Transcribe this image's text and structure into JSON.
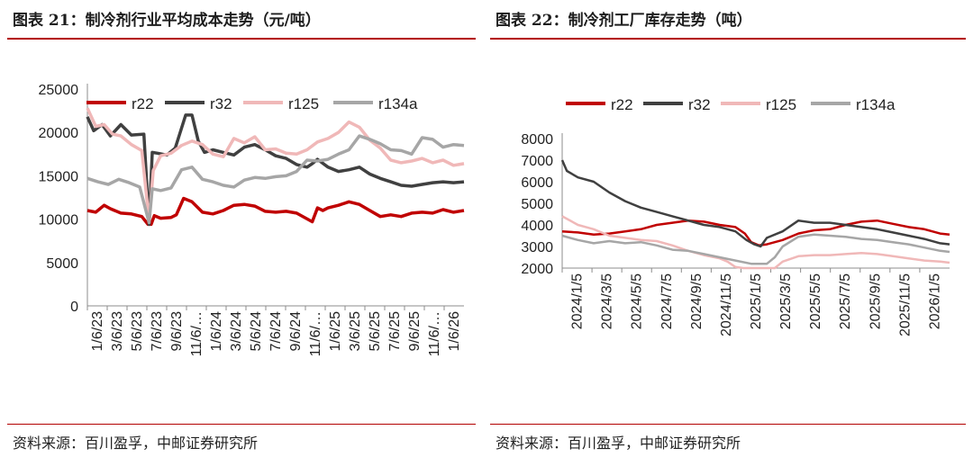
{
  "left": {
    "title": "图表 21：制冷剂行业平均成本走势（元/吨）",
    "source": "资料来源：百川盈孚，中邮证券研究所"
  },
  "right": {
    "title": "图表 22：制冷剂工厂库存走势（吨）",
    "source": "资料来源：百川盈孚，中邮证券研究所"
  },
  "chart_data": [
    {
      "type": "line",
      "title": "",
      "xlabel": "",
      "ylabel": "",
      "ylim": [
        0,
        25000
      ],
      "yticks": [
        0,
        5000,
        10000,
        15000,
        20000,
        25000
      ],
      "legend_position": "top",
      "grid": false,
      "x_tick_labels": [
        "1/6/23",
        "3/6/23",
        "5/6/23",
        "7/6/23",
        "9/6/23",
        "11/6/…",
        "1/6/24",
        "3/6/24",
        "5/6/24",
        "7/6/24",
        "9/6/24",
        "11/6/…",
        "1/6/25",
        "3/6/25",
        "5/6/25",
        "7/6/25",
        "9/6/25",
        "11/6/…",
        "1/6/26"
      ],
      "x_range_index": [
        0,
        36
      ],
      "series": [
        {
          "name": "r22",
          "color": "#c00000",
          "x": [
            0,
            0.8,
            1.6,
            2.2,
            3.2,
            4.2,
            5.2,
            5.8,
            6.1,
            6.4,
            7,
            8,
            8.5,
            9.2,
            10,
            11,
            12,
            13,
            14,
            15,
            16,
            17,
            18,
            19,
            20,
            21.5,
            22,
            22.5,
            23,
            24,
            25,
            26,
            27,
            28,
            29,
            30,
            31,
            32,
            33,
            34,
            35,
            36
          ],
          "y": [
            11000,
            10800,
            11600,
            11200,
            10700,
            10600,
            10300,
            9400,
            9400,
            10400,
            10100,
            10200,
            10500,
            12400,
            12000,
            10800,
            10600,
            11000,
            11600,
            11700,
            11500,
            10900,
            10800,
            10900,
            10700,
            9700,
            11300,
            11000,
            11300,
            11600,
            12000,
            11700,
            11000,
            10300,
            10500,
            10300,
            10700,
            10800,
            10700,
            11100,
            10800,
            11000
          ]
        },
        {
          "name": "r32",
          "color": "#404040",
          "x": [
            0,
            0.6,
            1.4,
            2.2,
            3.2,
            4.2,
            5.4,
            5.9,
            6.2,
            6.7,
            7.6,
            8.4,
            9.4,
            10,
            10.6,
            11.2,
            12,
            13,
            14,
            15,
            16,
            17,
            18,
            19,
            20,
            21,
            21.5,
            22,
            23,
            24,
            25,
            26,
            27,
            28,
            29,
            30,
            31,
            32,
            33,
            34,
            35,
            36
          ],
          "y": [
            21800,
            20200,
            20900,
            19600,
            20900,
            19700,
            19800,
            9400,
            17700,
            17600,
            17400,
            18200,
            22000,
            22000,
            19000,
            17700,
            18000,
            17700,
            17400,
            18300,
            18600,
            18000,
            17300,
            17000,
            16300,
            16000,
            16400,
            16900,
            16000,
            15500,
            15700,
            16000,
            15200,
            14700,
            14300,
            13900,
            13800,
            14000,
            14200,
            14300,
            14200,
            14300
          ]
        },
        {
          "name": "r125",
          "color": "#f0b8b8",
          "x": [
            0,
            0.8,
            1.6,
            2.4,
            3.2,
            4.2,
            5.2,
            5.9,
            6.3,
            7,
            8,
            9,
            10,
            11,
            12,
            13,
            14,
            15,
            16,
            17,
            18,
            19,
            20,
            21,
            22,
            23,
            24,
            25,
            26,
            27,
            28,
            29,
            30,
            31,
            32,
            33,
            34,
            35,
            36
          ],
          "y": [
            22800,
            20700,
            20900,
            19800,
            19600,
            18600,
            17900,
            9800,
            15600,
            17300,
            17600,
            18500,
            19000,
            18600,
            17500,
            17200,
            19300,
            18800,
            19500,
            18000,
            18100,
            17600,
            17500,
            18000,
            18900,
            19300,
            20000,
            21200,
            20600,
            19100,
            18200,
            16800,
            16500,
            16700,
            17000,
            16500,
            16800,
            16200,
            16400
          ]
        },
        {
          "name": "r134a",
          "color": "#a6a6a6",
          "x": [
            0,
            1,
            2,
            3,
            4,
            5,
            5.9,
            6.2,
            7,
            8,
            9,
            10,
            11,
            12,
            13,
            14,
            15,
            16,
            17,
            18,
            19,
            20,
            21,
            22,
            23,
            24,
            25,
            26,
            27,
            28,
            29,
            30,
            31,
            32,
            33,
            34,
            35,
            36
          ],
          "y": [
            14700,
            14300,
            14000,
            14600,
            14200,
            13700,
            9600,
            13500,
            13300,
            13600,
            15700,
            16000,
            14600,
            14300,
            13900,
            13700,
            14500,
            14800,
            14700,
            14900,
            15000,
            15500,
            16800,
            16700,
            16900,
            17500,
            18000,
            19600,
            19200,
            18700,
            18000,
            17900,
            17500,
            19400,
            19200,
            18300,
            18600,
            18500
          ]
        }
      ]
    },
    {
      "type": "line",
      "title": "",
      "xlabel": "",
      "ylabel": "",
      "ylim": [
        2000,
        8000
      ],
      "yticks": [
        2000,
        3000,
        4000,
        5000,
        6000,
        7000,
        8000
      ],
      "legend_position": "top",
      "grid": false,
      "x_tick_labels": [
        "2024/1/5",
        "2024/3/5",
        "2024/5/5",
        "2024/7/5",
        "2024/9/5",
        "2024/11/5",
        "2025/1/5",
        "2025/3/5",
        "2025/5/5",
        "2025/7/5",
        "2025/9/5",
        "2025/11/5",
        "2026/1/5"
      ],
      "x_range_index": [
        0,
        24.6
      ],
      "series": [
        {
          "name": "r22",
          "color": "#c00000",
          "x": [
            0,
            1,
            2,
            3,
            4,
            5,
            6,
            7,
            8,
            9,
            10,
            11,
            11.6,
            12,
            12.5,
            13,
            14,
            15,
            16,
            17,
            18,
            19,
            20,
            21,
            22,
            23,
            24,
            24.6
          ],
          "y": [
            3700,
            3650,
            3550,
            3600,
            3700,
            3800,
            4000,
            4100,
            4200,
            4150,
            4000,
            3900,
            3600,
            3200,
            3050,
            3100,
            3300,
            3600,
            3750,
            3800,
            4000,
            4150,
            4200,
            4050,
            3900,
            3800,
            3600,
            3550
          ]
        },
        {
          "name": "r32",
          "color": "#404040",
          "x": [
            0,
            0.3,
            1,
            2,
            3,
            4,
            5,
            6,
            7,
            8,
            9,
            10,
            11,
            11.7,
            12.2,
            12.6,
            13,
            14,
            15,
            16,
            17,
            18,
            19,
            20,
            21,
            22,
            23,
            24,
            24.6
          ],
          "y": [
            7000,
            6500,
            6200,
            6000,
            5500,
            5100,
            4800,
            4600,
            4400,
            4200,
            4000,
            3900,
            3700,
            3300,
            3100,
            3000,
            3400,
            3700,
            4200,
            4100,
            4100,
            4000,
            3900,
            3800,
            3650,
            3500,
            3350,
            3150,
            3100
          ]
        },
        {
          "name": "r125",
          "color": "#f0b8b8",
          "x": [
            0,
            1,
            2,
            3,
            4,
            5,
            6,
            7,
            8,
            9,
            10,
            10.5,
            11,
            11.5,
            12,
            12.5,
            13,
            13.5,
            14,
            15,
            16,
            17,
            18,
            19,
            20,
            21,
            22,
            23,
            24,
            24.6
          ],
          "y": [
            4400,
            4000,
            3800,
            3500,
            3400,
            3300,
            3250,
            3050,
            2800,
            2600,
            2450,
            2300,
            2050,
            1950,
            1900,
            1850,
            1950,
            2000,
            2300,
            2550,
            2600,
            2600,
            2650,
            2700,
            2650,
            2550,
            2450,
            2350,
            2300,
            2250
          ]
        },
        {
          "name": "r134a",
          "color": "#a6a6a6",
          "x": [
            0,
            1,
            2,
            3,
            4,
            5,
            6,
            7,
            8,
            9,
            10,
            11,
            12,
            13,
            13.5,
            14,
            15,
            16,
            17,
            18,
            19,
            20,
            21,
            22,
            23,
            24,
            24.6
          ],
          "y": [
            3500,
            3300,
            3150,
            3250,
            3150,
            3200,
            3050,
            2850,
            2800,
            2650,
            2500,
            2350,
            2200,
            2200,
            2500,
            3000,
            3450,
            3550,
            3500,
            3450,
            3350,
            3300,
            3200,
            3100,
            2950,
            2800,
            2750
          ]
        }
      ]
    }
  ]
}
